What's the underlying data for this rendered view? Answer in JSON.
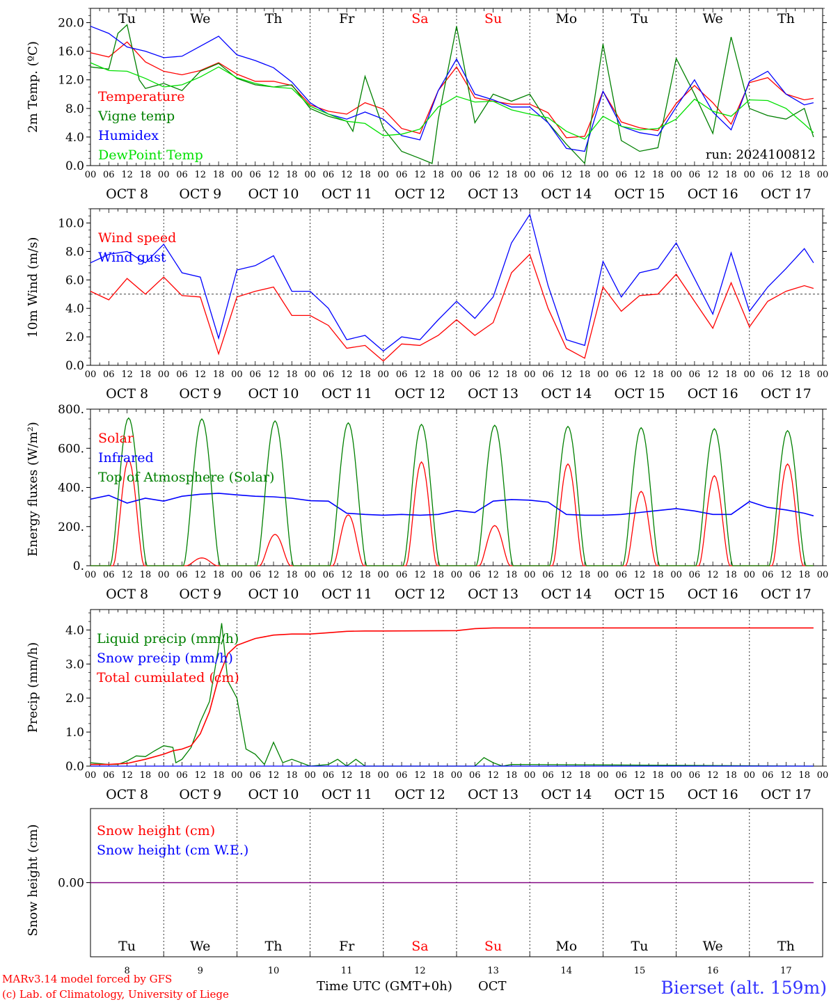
{
  "days": [
    "Tu",
    "We",
    "Th",
    "Fr",
    "Sa",
    "Su",
    "Mo",
    "Tu",
    "We",
    "Th"
  ],
  "weekend_days": [
    4,
    5
  ],
  "date_labels": [
    "OCT  8",
    "OCT  9",
    "OCT 10",
    "OCT 11",
    "OCT 12",
    "OCT 13",
    "OCT 14",
    "OCT 15",
    "OCT 16",
    "OCT 17"
  ],
  "bottom_day_numbers": [
    "8",
    "9",
    "10",
    "11",
    "12",
    "13",
    "14",
    "15",
    "16",
    "17"
  ],
  "hour_ticks": [
    "00",
    "06",
    "12",
    "18"
  ],
  "run_label": "run: 2024100812",
  "x_axis_title": "Time UTC (GMT+0h)",
  "x_axis_month": "OCT",
  "footer": {
    "model": "MARv3.14 model forced by GFS",
    "copyright": "(c) Lab. of Climatology, University of Liege",
    "station": "Bierset (alt. 159m)"
  },
  "colors": {
    "red": "#ff0000",
    "green": "#008000",
    "blue": "#0000ff",
    "lightgreen": "#00e000",
    "weekend": "#ff0000",
    "purple": "#800080",
    "station": "#3333ff"
  },
  "chart_data": [
    {
      "type": "line",
      "ylabel": "2m Temp. (ºC)",
      "ylim": [
        0,
        22
      ],
      "yticks": [
        0,
        4,
        8,
        12,
        16,
        20
      ],
      "ytick_labels": [
        "0.0",
        "4.0",
        "8.0",
        "12.0",
        "16.0",
        "20.0"
      ],
      "x_unit": "hours since Oct 8 00 UTC",
      "series": [
        {
          "name": "Temperature",
          "color": "#ff0000",
          "x": [
            0,
            6,
            12,
            18,
            24,
            30,
            36,
            42,
            48,
            54,
            60,
            66,
            72,
            78,
            84,
            90,
            96,
            102,
            108,
            114,
            120,
            126,
            132,
            138,
            144,
            150,
            156,
            162,
            168,
            174,
            180,
            186,
            192,
            198,
            204,
            210,
            216,
            222,
            228,
            234,
            237
          ],
          "y": [
            15.8,
            15.2,
            17.3,
            14.5,
            13.2,
            12.7,
            13.3,
            14.4,
            12.8,
            11.8,
            11.8,
            11.2,
            8.5,
            7.6,
            7.2,
            8.8,
            7.9,
            5.2,
            4.5,
            10.5,
            13.8,
            9.5,
            9.0,
            8.6,
            8.6,
            7.4,
            3.9,
            4.1,
            10.4,
            6.1,
            5.3,
            4.9,
            8.7,
            11.2,
            8.8,
            5.8,
            11.6,
            12.3,
            10.0,
            9.2,
            9.4
          ]
        },
        {
          "name": "Vigne temp",
          "color": "#008000",
          "x": [
            0,
            6,
            9,
            12,
            16,
            18,
            24,
            30,
            36,
            42,
            48,
            54,
            60,
            66,
            72,
            78,
            84,
            86,
            90,
            96,
            102,
            108,
            112,
            114,
            120,
            126,
            132,
            138,
            144,
            150,
            156,
            162,
            168,
            174,
            180,
            186,
            192,
            198,
            204,
            210,
            216,
            222,
            228,
            234,
            237
          ],
          "y": [
            13.8,
            13.5,
            18.5,
            19.7,
            12.0,
            10.8,
            11.5,
            10.5,
            13.2,
            14.3,
            12.2,
            11.3,
            11.0,
            11.3,
            8.0,
            6.9,
            6.2,
            4.8,
            12.5,
            5.2,
            2.0,
            1.0,
            0.3,
            6.5,
            19.5,
            6.0,
            10.0,
            9.0,
            10.0,
            6.0,
            3.0,
            0.3,
            17.0,
            3.5,
            2.0,
            2.5,
            15.0,
            10.0,
            4.5,
            18.0,
            8.0,
            7.0,
            6.5,
            8.0,
            4.0
          ]
        },
        {
          "name": "Humidex",
          "color": "#0000ff",
          "x": [
            0,
            6,
            12,
            18,
            24,
            30,
            36,
            42,
            48,
            54,
            60,
            66,
            72,
            78,
            84,
            90,
            96,
            102,
            108,
            114,
            120,
            126,
            132,
            138,
            144,
            150,
            156,
            162,
            168,
            174,
            180,
            186,
            192,
            198,
            204,
            210,
            216,
            222,
            228,
            234,
            237
          ],
          "y": [
            19.5,
            18.5,
            16.6,
            16.0,
            15.1,
            15.3,
            16.7,
            18.1,
            15.5,
            14.7,
            13.7,
            11.7,
            8.8,
            7.2,
            6.5,
            7.5,
            6.5,
            4.2,
            3.6,
            10.5,
            14.9,
            10.0,
            9.2,
            8.2,
            8.2,
            6.0,
            2.4,
            2.0,
            10.4,
            5.5,
            4.6,
            4.2,
            8.2,
            12.0,
            7.5,
            5.0,
            11.8,
            13.2,
            10.0,
            8.5,
            8.8
          ]
        },
        {
          "name": "DewPoint Temp",
          "color": "#00e000",
          "x": [
            0,
            6,
            12,
            18,
            24,
            30,
            36,
            42,
            48,
            54,
            60,
            66,
            72,
            78,
            84,
            90,
            96,
            102,
            108,
            114,
            120,
            126,
            132,
            138,
            144,
            150,
            156,
            162,
            168,
            174,
            180,
            186,
            192,
            198,
            204,
            210,
            216,
            222,
            228,
            234,
            237
          ],
          "y": [
            14.4,
            13.3,
            13.2,
            12.2,
            11.0,
            11.3,
            12.4,
            13.8,
            12.3,
            11.5,
            11.0,
            10.8,
            8.3,
            7.2,
            6.2,
            5.9,
            4.2,
            4.4,
            5.1,
            8.2,
            9.7,
            8.9,
            9.0,
            7.8,
            7.2,
            6.7,
            4.8,
            3.7,
            6.9,
            5.5,
            5.0,
            5.2,
            6.5,
            9.3,
            7.6,
            6.9,
            9.2,
            9.1,
            8.0,
            5.8,
            4.6
          ]
        }
      ],
      "legend": [
        "Temperature",
        "Vigne temp",
        "Humidex",
        "DewPoint Temp"
      ],
      "legend_placement": "top-left"
    },
    {
      "type": "line",
      "ylabel": "10m Wind (m/s)",
      "ylim": [
        0,
        11
      ],
      "yticks": [
        0,
        2,
        4,
        6,
        8,
        10
      ],
      "ytick_labels": [
        "0.0",
        "2.0",
        "4.0",
        "6.0",
        "8.0",
        "10.0"
      ],
      "reference_line": 5.0,
      "series": [
        {
          "name": "Wind speed",
          "color": "#ff0000",
          "x": [
            0,
            6,
            12,
            18,
            24,
            30,
            36,
            42,
            48,
            54,
            60,
            66,
            72,
            78,
            84,
            90,
            96,
            102,
            108,
            114,
            120,
            126,
            132,
            138,
            144,
            150,
            156,
            162,
            168,
            174,
            180,
            186,
            192,
            198,
            204,
            210,
            216,
            222,
            228,
            234,
            237
          ],
          "y": [
            5.2,
            4.6,
            6.1,
            5.0,
            6.2,
            4.9,
            4.8,
            0.8,
            4.8,
            5.2,
            5.5,
            3.5,
            3.5,
            2.8,
            1.2,
            1.4,
            0.3,
            1.5,
            1.4,
            2.1,
            3.2,
            2.1,
            3.0,
            6.5,
            7.8,
            4.0,
            1.2,
            0.5,
            5.5,
            3.8,
            4.9,
            5.0,
            6.4,
            4.5,
            2.6,
            5.8,
            2.7,
            4.5,
            5.2,
            5.6,
            5.4
          ]
        },
        {
          "name": "Wind gust",
          "color": "#0000ff",
          "x": [
            0,
            6,
            12,
            18,
            24,
            30,
            36,
            42,
            48,
            54,
            60,
            66,
            72,
            78,
            84,
            90,
            96,
            102,
            108,
            114,
            120,
            126,
            132,
            138,
            144,
            150,
            156,
            162,
            168,
            174,
            180,
            186,
            192,
            198,
            204,
            210,
            216,
            222,
            228,
            234,
            237
          ],
          "y": [
            7.2,
            7.8,
            8.0,
            7.2,
            8.5,
            6.5,
            6.2,
            1.9,
            6.7,
            7.0,
            7.7,
            5.2,
            5.2,
            4.0,
            1.8,
            2.1,
            1.0,
            2.0,
            1.8,
            3.2,
            4.5,
            3.3,
            4.8,
            8.6,
            10.6,
            5.6,
            1.8,
            1.4,
            7.3,
            4.8,
            6.5,
            6.8,
            8.6,
            6.1,
            3.6,
            7.9,
            3.8,
            5.5,
            6.8,
            8.2,
            7.2
          ]
        }
      ],
      "legend": [
        "Wind speed",
        "Wind gust"
      ],
      "legend_placement": "top-left"
    },
    {
      "type": "line",
      "ylabel": "Energy fluxes (W/m²)",
      "ylim": [
        0,
        800
      ],
      "yticks": [
        0,
        200,
        400,
        600,
        800
      ],
      "ytick_labels": [
        "0.",
        "200.",
        "400.",
        "600.",
        "800."
      ],
      "series": [
        {
          "name": "Solar",
          "color": "#ff0000",
          "day_peaks": [
            540,
            40,
            160,
            260,
            530,
            205,
            520,
            380,
            460,
            520
          ]
        },
        {
          "name": "Infrared",
          "color": "#0000ff",
          "x": [
            0,
            6,
            12,
            18,
            24,
            30,
            36,
            42,
            48,
            54,
            60,
            66,
            72,
            78,
            84,
            90,
            96,
            102,
            108,
            114,
            120,
            126,
            132,
            138,
            144,
            150,
            156,
            162,
            168,
            174,
            180,
            186,
            192,
            198,
            204,
            210,
            216,
            222,
            228,
            234,
            237
          ],
          "y": [
            340,
            360,
            320,
            345,
            330,
            355,
            365,
            370,
            362,
            355,
            352,
            345,
            332,
            330,
            268,
            262,
            258,
            262,
            258,
            262,
            282,
            272,
            330,
            338,
            335,
            325,
            262,
            258,
            258,
            262,
            272,
            282,
            292,
            280,
            262,
            262,
            328,
            298,
            285,
            268,
            255
          ]
        },
        {
          "name": "Top of Atmosphere (Solar)",
          "color": "#008000",
          "day_peaks": [
            755,
            750,
            740,
            730,
            722,
            718,
            712,
            705,
            700,
            690
          ]
        }
      ],
      "legend": [
        "Solar",
        "Infrared",
        "Top of Atmosphere (Solar)"
      ],
      "legend_placement": "top-left"
    },
    {
      "type": "line",
      "ylabel": "Precip (mm/h)",
      "ylim": [
        0,
        4.6
      ],
      "yticks": [
        0,
        1,
        2,
        3,
        4
      ],
      "ytick_labels": [
        "0.0",
        "1.0",
        "2.0",
        "3.0",
        "4.0"
      ],
      "series": [
        {
          "name": "Liquid precip (mm/h)",
          "color": "#008000",
          "x": [
            0,
            6,
            9,
            12,
            15,
            18,
            21,
            24,
            27,
            28,
            30,
            33,
            36,
            39,
            42,
            43,
            45,
            48,
            51,
            54,
            57,
            60,
            63,
            66,
            72,
            78,
            81,
            84,
            87,
            90,
            93,
            96,
            120,
            126,
            129,
            132,
            135,
            138,
            237
          ],
          "y": [
            0.1,
            0.05,
            0.05,
            0.15,
            0.3,
            0.28,
            0.45,
            0.6,
            0.55,
            0.1,
            0.2,
            0.55,
            1.3,
            1.9,
            3.5,
            4.2,
            2.5,
            2.0,
            0.5,
            0.35,
            0.05,
            0.7,
            0.1,
            0.2,
            0.0,
            0.05,
            0.2,
            0.0,
            0.2,
            0.0,
            0.0,
            0.0,
            0.0,
            0.0,
            0.25,
            0.1,
            0.0,
            0.05,
            0.0
          ]
        },
        {
          "name": "Snow precip (mm/h)",
          "color": "#0000ff",
          "x": [
            0,
            237
          ],
          "y": [
            0,
            0
          ]
        },
        {
          "name": "Total cumulated (cm)",
          "color": "#ff0000",
          "x": [
            0,
            6,
            12,
            18,
            24,
            27,
            30,
            33,
            36,
            39,
            42,
            45,
            48,
            51,
            54,
            60,
            66,
            72,
            78,
            84,
            90,
            96,
            120,
            126,
            132,
            138,
            237
          ],
          "y": [
            0.05,
            0.05,
            0.08,
            0.2,
            0.35,
            0.45,
            0.5,
            0.6,
            0.95,
            1.6,
            2.6,
            3.3,
            3.55,
            3.65,
            3.75,
            3.85,
            3.88,
            3.88,
            3.92,
            3.96,
            3.97,
            3.97,
            3.98,
            4.04,
            4.06,
            4.06,
            4.06
          ]
        }
      ],
      "legend": [
        "Liquid precip (mm/h)",
        "Snow precip (mm/h)",
        "Total cumulated (cm)"
      ],
      "legend_placement": "top-left"
    },
    {
      "type": "line",
      "ylabel": "Snow height (cm)",
      "yticks": [
        0
      ],
      "ytick_labels": [
        "0.00"
      ],
      "series": [
        {
          "name": "Snow height (cm)",
          "color": "#ff0000",
          "x": [
            0,
            237
          ],
          "y": [
            0,
            0
          ]
        },
        {
          "name": "Snow height (cm W.E.)",
          "color": "#0000ff",
          "x": [
            0,
            237
          ],
          "y": [
            0,
            0
          ]
        }
      ],
      "legend": [
        "Snow height (cm)",
        "Snow height (cm W.E.)"
      ],
      "legend_placement": "top-left"
    }
  ]
}
